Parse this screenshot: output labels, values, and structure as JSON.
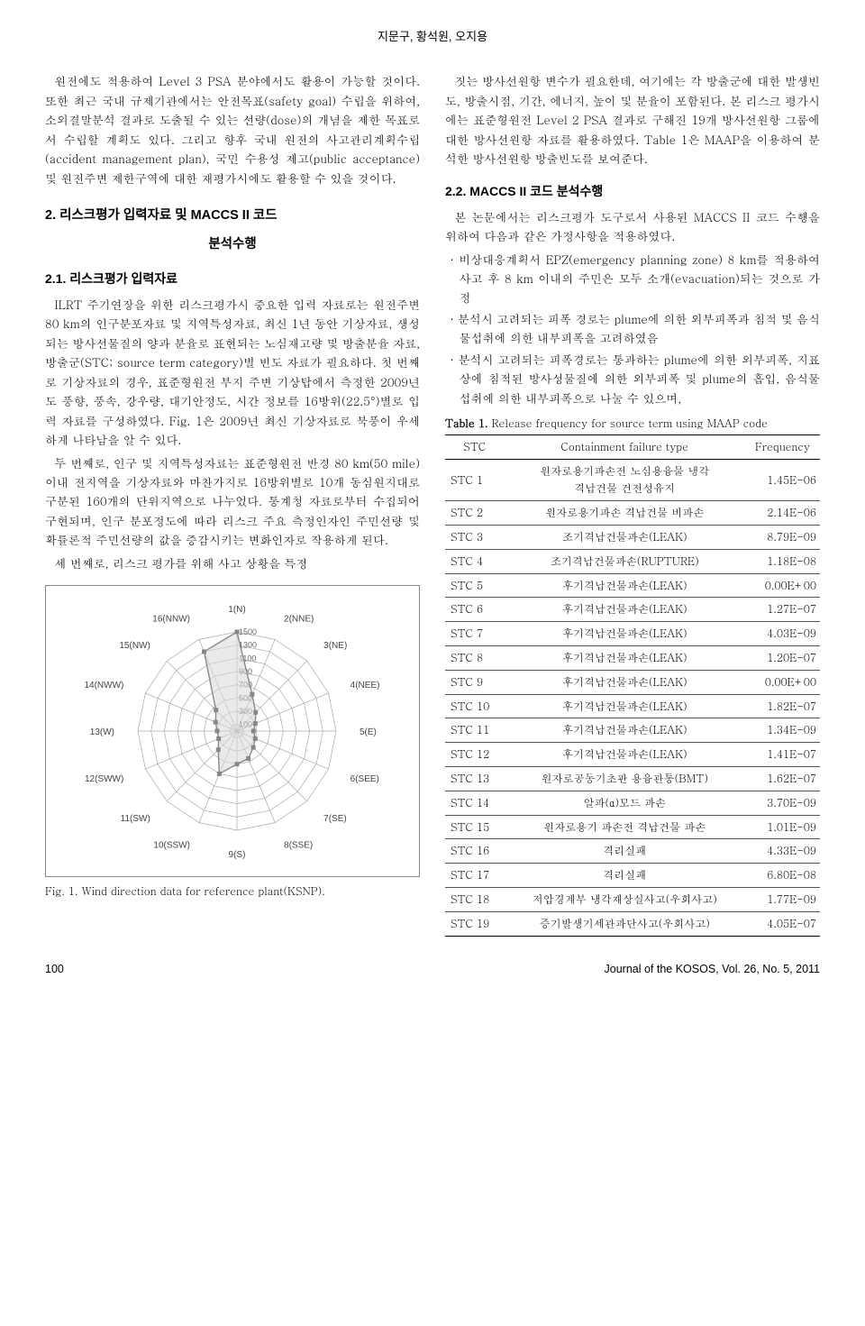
{
  "header": {
    "authors": "지문구, 황석원, 오지용"
  },
  "left": {
    "p1": "원전에도 적용하여 Level 3 PSA 분야에서도 활용이 가능할 것이다. 또한 최근 국내 규제기관에서는 안전목표(safety goal) 수립을 위하여, 소외결말분석 결과로 도출될 수 있는 선량(dose)의 개념을 제한 목표로서 수립할 계획도 있다. 그리고 향후 국내 원전의 사고관리계획수립(accident management plan), 국민 수용성 제고(public acceptance) 및 원전주변 제한구역에 대한 재평가시에도 활용할 수 있을 것이다.",
    "h2_1a": "2. 리스크평가 입력자료 및 MACCS II 코드",
    "h2_1b": "분석수행",
    "h3_1": "2.1. 리스크평가 입력자료",
    "p2": "ILRT 주기연장을 위한 리스크평가시 중요한 입력 자료로는 원전주변 80 km의 인구분포자료 및 지역특성자료, 최신 1년 동안 기상자료, 생성되는 방사선물질의 양과 분율로 표현되는 노심재고량 및 방출분율 자료, 방출군(STC; source term category)별 빈도 자료가 필요하다. 첫 번째로 기상자료의 경우, 표준형원전 부지 주변 기상탑에서 측정한 2009년도 풍향, 풍속, 강우량, 대기안정도, 시간 정보를 16방위(22.5°)별로 입력 자료를 구성하였다. Fig. 1은 2009년 최신 기상자료로 북풍이 우세하게 나타남을 알 수 있다.",
    "p3": "두 번째로, 인구 및 지역특성자료는 표준형원전 반경 80 km(50 mile) 이내 전지역을 기상자료와 마찬가지로 16방위별로 10개 동심원지대로 구분된 160개의 단위지역으로 나누었다. 통계청 자료로부터 수집되어 구현되며, 인구 분포정도에 따라 리스크 주요 측정인자인 주민선량 및 확률론적 주민선량의 값을 증감시키는 변화인자로 작용하게 된다.",
    "p4": "세 번째로, 리스크 평가를 위해 사고 상황을 특정",
    "fig1_caption": "Fig. 1. Wind direction data for reference plant(KSNP)."
  },
  "right": {
    "p1": "짓는 방사선원항 변수가 필요한데, 여기에는 각 방출군에 대한 발생빈도, 방출시점, 기간, 에너지, 높이 및 분율이 포함된다. 본 리스크 평가시에는 표준형원전 Level 2 PSA 결과로 구해진 19개 방사선원항 그룹에 대한 방사선원항 자료를 활용하였다. Table 1은 MAAP을 이용하여 분석한 방사선원항 방출빈도를 보여준다.",
    "h3_1": "2.2. MACCS II 코드 분석수행",
    "p2": "본 논문에서는 리스크평가 도구로서 사용된 MACCS II 코드 수행을 위하여 다음과 같은 가정사항을 적용하였다.",
    "b1": "· 비상대응계획서 EPZ(emergency planning zone) 8 km를 적용하여 사고 후 8 km 이내의 주민은 모두 소개(evacuation)되는 것으로 가정",
    "b2": "· 분석시 고려되는 피폭 경로는 plume에 의한 외부피폭과 침적 및 음식물섭취에 의한 내부피폭을 고려하였음",
    "b3": "· 분석시 고려되는 피폭경로는 통과하는 plume에 의한 외부피폭, 지표상에 침적된 방사성물질에 의한 외부피폭 및 plume의 흡입, 음식물 섭취에 의한 내부피폭으로 나눌 수 있으며,",
    "table1_caption_b": "Table 1.",
    "table1_caption": " Release frequency for source term using MAAP code",
    "table1": {
      "headers": [
        "STC",
        "Containment failure type",
        "Frequency"
      ],
      "rows": [
        [
          "STC 1",
          "원자로용기파손전 노심용융물 냉각\n격납건물 건전성유지",
          "1.45E-06"
        ],
        [
          "STC 2",
          "원자로용기파손 격납건물 비파손",
          "2.14E-06"
        ],
        [
          "STC 3",
          "조기격납건물파손(LEAK)",
          "8.79E-09"
        ],
        [
          "STC 4",
          "조기격납건물파손(RUPTURE)",
          "1.18E-08"
        ],
        [
          "STC 5",
          "후기격납건물파손(LEAK)",
          "0.00E+00"
        ],
        [
          "STC 6",
          "후기격납건물파손(LEAK)",
          "1.27E-07"
        ],
        [
          "STC 7",
          "후기격납건물파손(LEAK)",
          "4.03E-09"
        ],
        [
          "STC 8",
          "후기격납건물파손(LEAK)",
          "1.20E-07"
        ],
        [
          "STC 9",
          "후기격납건물파손(LEAK)",
          "0.00E+00"
        ],
        [
          "STC 10",
          "후기격납건물파손(LEAK)",
          "1.82E-07"
        ],
        [
          "STC 11",
          "후기격납건물파손(LEAK)",
          "1.34E-09"
        ],
        [
          "STC 12",
          "후기격납건물파손(LEAK)",
          "1.41E-07"
        ],
        [
          "STC 13",
          "원자로공동기초판 용융관통(BMT)",
          "1.62E-07"
        ],
        [
          "STC 14",
          "알파(α)모드 파손",
          "3.70E-09"
        ],
        [
          "STC 15",
          "원자로용기 파손전 격납건물 파손",
          "1.01E-09"
        ],
        [
          "STC 16",
          "격리실패",
          "4.33E-09"
        ],
        [
          "STC 17",
          "격리실패",
          "6.80E-08"
        ],
        [
          "STC 18",
          "저압경계부 냉각재상실사고(우회사고)",
          "1.77E-09"
        ],
        [
          "STC 19",
          "증기발생기세관파단사고(우회사고)",
          "4.05E-07"
        ]
      ]
    }
  },
  "radar": {
    "directions": [
      "1(N)",
      "2(NNE)",
      "3(NE)",
      "4(NEE)",
      "5(E)",
      "6(SEE)",
      "7(SE)",
      "8(SSE)",
      "9(S)",
      "10(SSW)",
      "11(SW)",
      "12(SWW)",
      "13(W)",
      "14(NWW)",
      "15(NW)",
      "16(NNW)"
    ],
    "rings": [
      100,
      300,
      500,
      700,
      900,
      1100,
      1300,
      1500
    ],
    "values": [
      1500,
      600,
      400,
      300,
      250,
      300,
      350,
      450,
      500,
      700,
      400,
      300,
      300,
      350,
      450,
      1300
    ],
    "grid_color": "#aaaaaa",
    "line_color": "#888888",
    "fill_color": "#d8d8d8",
    "bg": "#ffffff"
  },
  "footer": {
    "page": "100",
    "journal": "Journal of the KOSOS, Vol. 26, No. 5, 2011"
  }
}
